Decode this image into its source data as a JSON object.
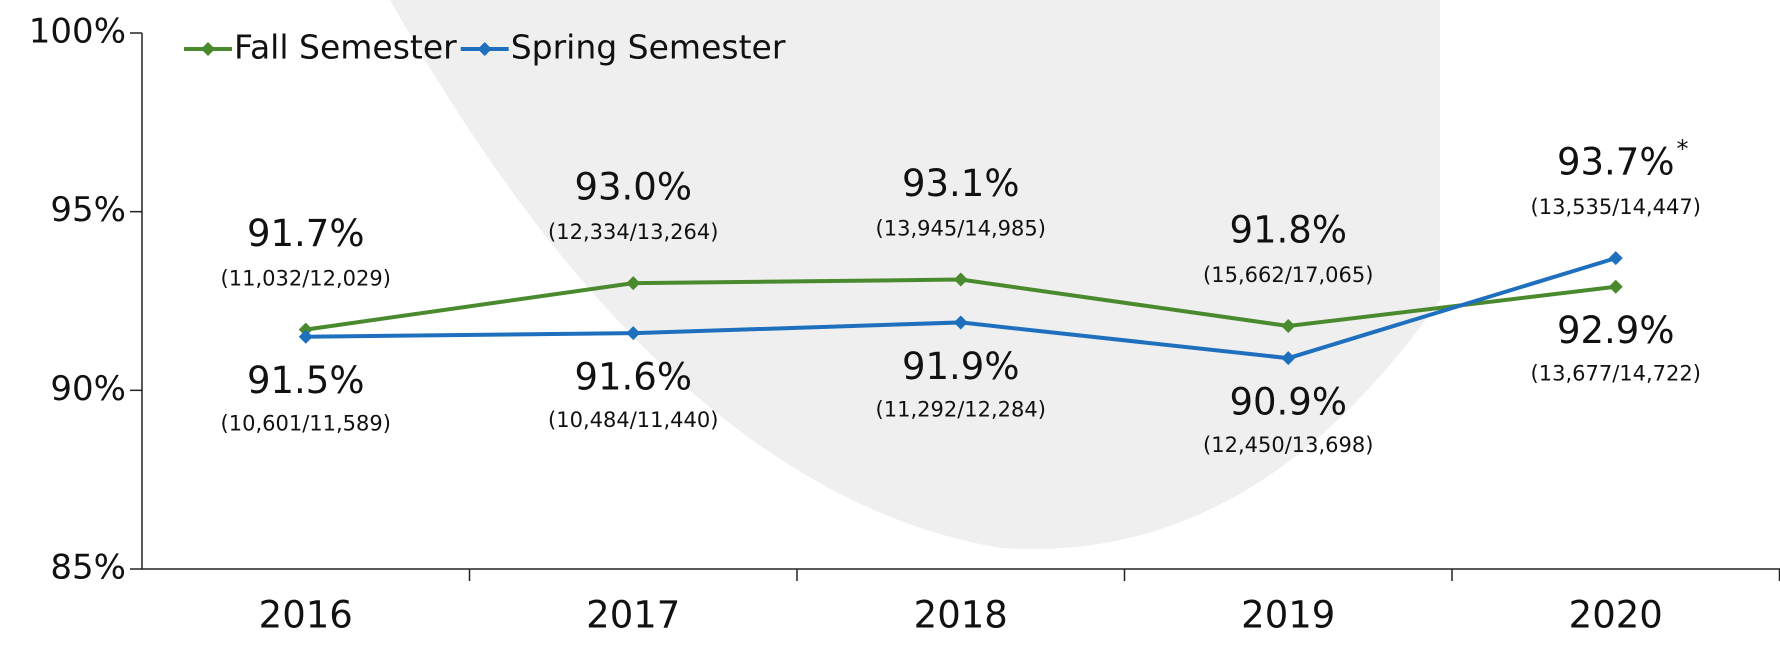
{
  "chart_data": {
    "type": "line",
    "categories": [
      "2016",
      "2017",
      "2018",
      "2019",
      "2020"
    ],
    "series": [
      {
        "name": "Fall Semester",
        "color": "#4a8a2f",
        "values": [
          91.7,
          93.0,
          93.1,
          91.8,
          92.9
        ],
        "value_labels": [
          "91.7%",
          "93.0%",
          "93.1%",
          "91.8%",
          "92.9%"
        ],
        "counts": [
          "(11,032/12,029)",
          "(12,334/13,264)",
          "(13,945/14,985)",
          "(15,662/17,065)",
          "(13,677/14,722)"
        ]
      },
      {
        "name": "Spring Semester",
        "color": "#1f6fbf",
        "values": [
          91.5,
          91.6,
          91.9,
          90.9,
          93.7
        ],
        "value_labels": [
          "91.5%",
          "91.6%",
          "91.9%",
          "90.9%",
          "93.7%"
        ],
        "counts": [
          "(10,601/11,589)",
          "(10,484/11,440)",
          "(11,292/12,284)",
          "(12,450/13,698)",
          "(13,535/14,447)"
        ]
      }
    ],
    "footnote_mark": "*",
    "ylim": [
      85,
      100
    ],
    "yticks": [
      {
        "value": 85,
        "label": "85%"
      },
      {
        "value": 90,
        "label": "90%"
      },
      {
        "value": 95,
        "label": "95%"
      },
      {
        "value": 100,
        "label": "100%"
      }
    ],
    "legend": "top-left"
  }
}
